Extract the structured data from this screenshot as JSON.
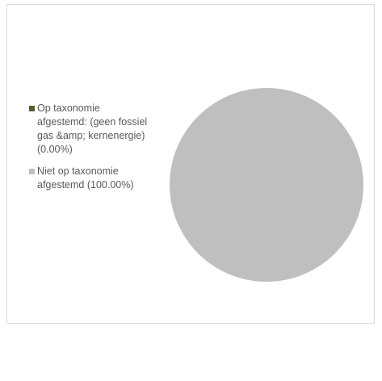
{
  "chart_data": {
    "type": "pie",
    "title": "",
    "slices": [
      {
        "label": "Op taxonomie afgestemd: (geen fossiel gas &amp; kernenergie) (0.00%)",
        "value": 0.0,
        "color": "#4f6228"
      },
      {
        "label": "Niet op taxonomie afgestemd (100.00%)",
        "value": 100.0,
        "color": "#bfbfbf"
      }
    ],
    "legend_position": "left"
  }
}
